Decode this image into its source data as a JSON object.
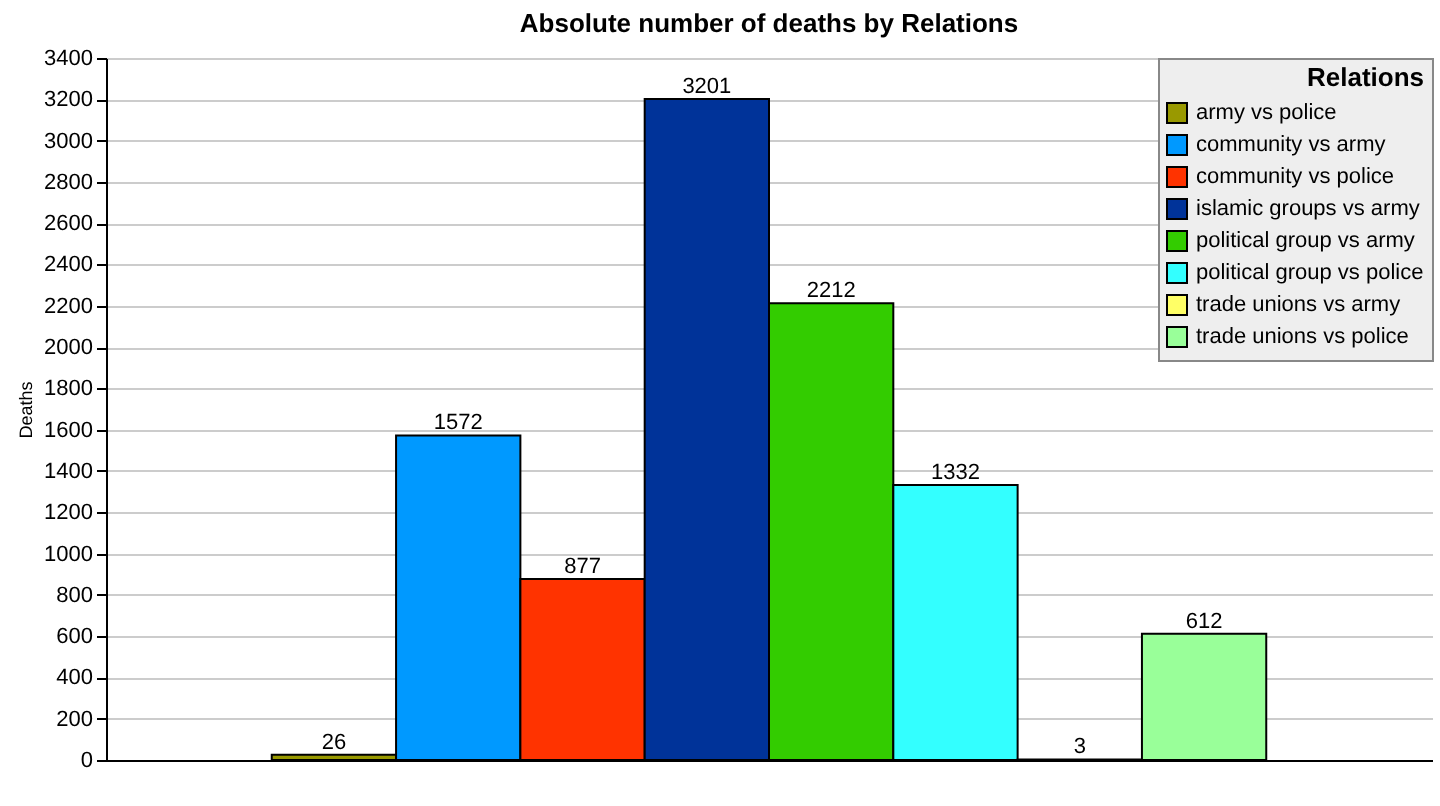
{
  "chart_data": {
    "type": "bar",
    "title": "Absolute number of deaths by Relations",
    "ylabel": "Deaths",
    "legend_title": "Relations",
    "categories": [
      null
    ],
    "series": [
      {
        "name": "army vs police",
        "color": "#999900",
        "values": [
          26
        ]
      },
      {
        "name": "community vs army",
        "color": "#0099ff",
        "values": [
          1572
        ]
      },
      {
        "name": "community vs police",
        "color": "#ff3300",
        "values": [
          877
        ]
      },
      {
        "name": "islamic groups vs army",
        "color": "#003399",
        "values": [
          3201
        ]
      },
      {
        "name": "political group vs army",
        "color": "#33cc00",
        "values": [
          2212
        ]
      },
      {
        "name": "political group vs police",
        "color": "#33ffff",
        "values": [
          1332
        ]
      },
      {
        "name": "trade unions vs army",
        "color": "#ffff66",
        "values": [
          3
        ]
      },
      {
        "name": "trade unions vs police",
        "color": "#99ff99",
        "values": [
          612
        ]
      }
    ],
    "ylim": [
      0,
      3400
    ],
    "yticks": [
      0,
      200,
      400,
      600,
      800,
      1000,
      1200,
      1400,
      1600,
      1800,
      2000,
      2200,
      2400,
      2600,
      2800,
      3000,
      3200,
      3400
    ],
    "grid": "y",
    "legend": "top right",
    "data_labels": true
  }
}
